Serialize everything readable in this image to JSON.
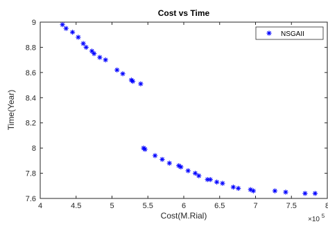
{
  "chart_data": {
    "type": "scatter",
    "title": "Cost vs Time",
    "xlabel": "Cost(M.Rial)",
    "ylabel": "Time(Year)",
    "x_exponent_label": "×10",
    "x_exponent_power": "5",
    "xlim": [
      4,
      8
    ],
    "ylim": [
      7.6,
      9
    ],
    "x_ticks": [
      4,
      4.5,
      5,
      5.5,
      6,
      6.5,
      7,
      7.5,
      8
    ],
    "x_tick_labels": [
      "4",
      "4.5",
      "5",
      "5.5",
      "6",
      "6.5",
      "7",
      "7.5",
      "8"
    ],
    "y_ticks": [
      7.6,
      7.8,
      8,
      8.2,
      8.4,
      8.6,
      8.8,
      9
    ],
    "y_tick_labels": [
      "7.6",
      "7.8",
      "8",
      "8.2",
      "8.4",
      "8.6",
      "8.8",
      "9"
    ],
    "legend_position": "top-right",
    "marker": "*",
    "marker_color": "#0000ff",
    "grid": false,
    "series": [
      {
        "name": "NSGAII",
        "color": "#0000ff",
        "points": [
          [
            4.31,
            8.98
          ],
          [
            4.36,
            8.95
          ],
          [
            4.45,
            8.92
          ],
          [
            4.53,
            8.88
          ],
          [
            4.6,
            8.83
          ],
          [
            4.64,
            8.8
          ],
          [
            4.72,
            8.77
          ],
          [
            4.75,
            8.75
          ],
          [
            4.83,
            8.72
          ],
          [
            4.91,
            8.7
          ],
          [
            5.07,
            8.62
          ],
          [
            5.15,
            8.59
          ],
          [
            5.27,
            8.54
          ],
          [
            5.29,
            8.53
          ],
          [
            5.4,
            8.51
          ],
          [
            5.44,
            8.0
          ],
          [
            5.46,
            7.99
          ],
          [
            5.6,
            7.94
          ],
          [
            5.7,
            7.91
          ],
          [
            5.8,
            7.88
          ],
          [
            5.93,
            7.86
          ],
          [
            5.96,
            7.85
          ],
          [
            6.06,
            7.82
          ],
          [
            6.16,
            7.8
          ],
          [
            6.21,
            7.78
          ],
          [
            6.33,
            7.75
          ],
          [
            6.37,
            7.75
          ],
          [
            6.46,
            7.73
          ],
          [
            6.54,
            7.72
          ],
          [
            6.69,
            7.69
          ],
          [
            6.76,
            7.68
          ],
          [
            6.93,
            7.67
          ],
          [
            6.97,
            7.66
          ],
          [
            7.27,
            7.66
          ],
          [
            7.42,
            7.65
          ],
          [
            7.69,
            7.64
          ],
          [
            7.83,
            7.64
          ]
        ]
      }
    ]
  }
}
